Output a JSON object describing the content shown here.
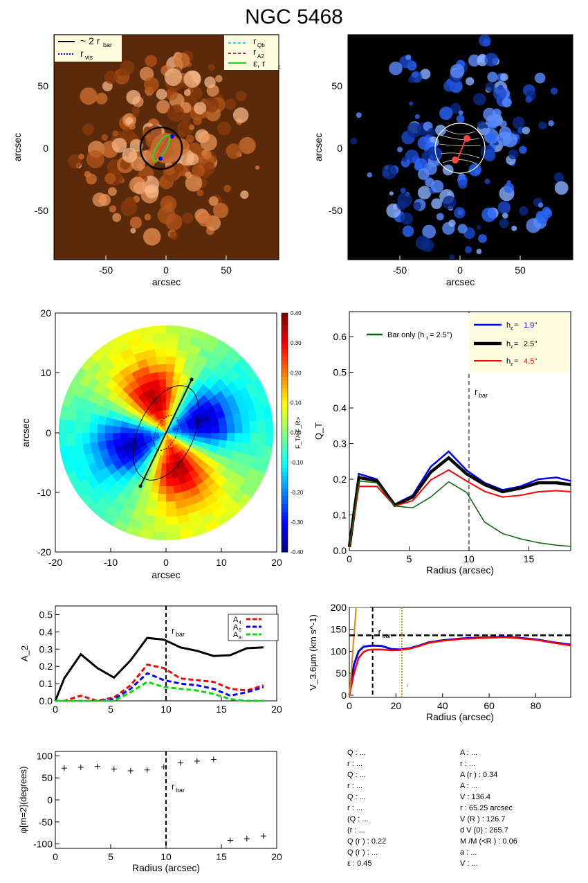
{
  "page": {
    "title": "NGC 5468"
  },
  "colors": {
    "image_bg": "#5a2a0a",
    "blue_bg": "#000000",
    "hz19": "#0000ff",
    "hz25": "#000000",
    "hz45": "#ff0000",
    "bar_only": "#006400",
    "a4": "#ff0000",
    "a6": "#0000ff",
    "a8": "#00dd00",
    "rmax_line": "#dd8800"
  },
  "panel_image": {
    "xlabel": "arcsec",
    "ylabel": "arcsec",
    "xticks": [
      "-50",
      "0",
      "50"
    ],
    "yticks": [
      "50",
      "0",
      "-50"
    ],
    "legend_left": [
      "~ 2 r",
      "bar",
      "r",
      "vis"
    ],
    "legend_right": [
      "r",
      "Qb",
      "r",
      "A2",
      "ε, r",
      "ε"
    ]
  },
  "panel_blue": {
    "xlabel": "arcsec",
    "ylabel": "arcsec",
    "xticks": [
      "-50",
      "0",
      "50"
    ],
    "yticks": [
      "50",
      "0",
      "-50"
    ]
  },
  "panel_ratio": {
    "xlabel": "arcsec",
    "ylabel": "arcsec",
    "xticks": [
      "-20",
      "-10",
      "0",
      "10",
      "20"
    ],
    "yticks": [
      "20",
      "10",
      "0",
      "-10",
      "-20"
    ],
    "colorbar_label": "F_T/<F_R>",
    "colorbar_ticks": [
      "0.40",
      "0.30",
      "0.20",
      "0.10",
      "0.00",
      "-0.10",
      "-0.20",
      "-0.30",
      "-0.40"
    ]
  },
  "chart_data": [
    {
      "type": "line",
      "xlabel": "Radius (arcsec)",
      "ylabel": "Q_T",
      "xlim": [
        0,
        18.5
      ],
      "ylim": [
        0,
        0.67
      ],
      "xticks": [
        "0",
        "5",
        "10",
        "15"
      ],
      "yticks": [
        "0.0",
        "0.1",
        "0.2",
        "0.3",
        "0.4",
        "0.5",
        "0.6"
      ],
      "vline": 10,
      "vline_label": "r",
      "vline_label_sub": "bar",
      "legend_bar_only": "Bar only (h",
      "legend_bar_only_rest": "=  2.5'')",
      "series": [
        {
          "name": "h  =  1.9''",
          "hz": "1.9''",
          "x": [
            0,
            0.8,
            2.3,
            3.8,
            5.3,
            6.8,
            8.3,
            9.8,
            11.3,
            12.8,
            14.3,
            15.8,
            17.3,
            18.5
          ],
          "y": [
            0.01,
            0.215,
            0.2,
            0.13,
            0.155,
            0.235,
            0.278,
            0.225,
            0.19,
            0.17,
            0.18,
            0.2,
            0.205,
            0.195
          ]
        },
        {
          "name": "h  =  2.5''",
          "hz": "2.5''",
          "x": [
            0,
            0.8,
            2.3,
            3.8,
            5.3,
            6.8,
            8.3,
            9.8,
            11.3,
            12.8,
            14.3,
            15.8,
            17.3,
            18.5
          ],
          "y": [
            0.01,
            0.205,
            0.195,
            0.127,
            0.15,
            0.22,
            0.26,
            0.215,
            0.185,
            0.165,
            0.175,
            0.19,
            0.19,
            0.185
          ]
        },
        {
          "name": "h  =  4.5''",
          "hz": "4.5''",
          "x": [
            0,
            0.8,
            2.3,
            3.8,
            5.3,
            6.8,
            8.3,
            9.8,
            11.3,
            12.8,
            14.3,
            15.8,
            17.3,
            18.5
          ],
          "y": [
            0.01,
            0.18,
            0.18,
            0.125,
            0.14,
            0.198,
            0.226,
            0.195,
            0.166,
            0.15,
            0.155,
            0.165,
            0.168,
            0.165
          ]
        },
        {
          "name": "Bar only (h  =  2.5'')",
          "x": [
            0,
            0.8,
            2.3,
            3.8,
            5.3,
            6.8,
            8.3,
            9.8,
            11.3,
            12.8,
            14.3,
            15.8,
            17.3,
            18.5
          ],
          "y": [
            0.01,
            0.195,
            0.19,
            0.125,
            0.12,
            0.15,
            0.193,
            0.163,
            0.08,
            0.048,
            0.033,
            0.022,
            0.015,
            0.012
          ]
        }
      ]
    },
    {
      "type": "line",
      "xlabel": "",
      "ylabel": "A_2",
      "xlim": [
        0,
        20
      ],
      "ylim": [
        0,
        0.55
      ],
      "xticks": [
        "0",
        "5",
        "10",
        "15",
        "20"
      ],
      "yticks": [
        "0.0",
        "0.1",
        "0.2",
        "0.3",
        "0.4",
        "0.5"
      ],
      "vline": 10,
      "vline_label": "r",
      "vline_label_sub": "bar",
      "legend": [
        "A",
        "A",
        "A"
      ],
      "legend_subs": [
        "4",
        "6",
        "8"
      ],
      "series": [
        {
          "name": "A2",
          "x": [
            0,
            0.8,
            2.3,
            3.8,
            5.3,
            6.8,
            8.3,
            9.8,
            11.3,
            12.8,
            14.3,
            15.8,
            17.3,
            18.8
          ],
          "y": [
            0.0,
            0.13,
            0.27,
            0.19,
            0.135,
            0.235,
            0.365,
            0.355,
            0.31,
            0.29,
            0.26,
            0.265,
            0.305,
            0.31
          ]
        },
        {
          "name": "A4",
          "x": [
            0,
            0.8,
            2.3,
            3.8,
            5.3,
            6.8,
            8.3,
            9.8,
            11.3,
            12.8,
            14.3,
            15.8,
            17.3,
            18.8
          ],
          "y": [
            0.0,
            0.0,
            0.03,
            0.0,
            0.02,
            0.09,
            0.21,
            0.19,
            0.13,
            0.12,
            0.11,
            0.07,
            0.06,
            0.09
          ]
        },
        {
          "name": "A6",
          "x": [
            0,
            0.8,
            2.3,
            3.8,
            5.3,
            6.8,
            8.3,
            9.8,
            11.3,
            12.8,
            14.3,
            15.8,
            17.3,
            18.8
          ],
          "y": [
            0.0,
            0.0,
            0.0,
            0.0,
            0.01,
            0.07,
            0.16,
            0.12,
            0.1,
            0.09,
            0.07,
            0.03,
            0.05,
            0.08
          ]
        },
        {
          "name": "A8",
          "x": [
            0,
            0.8,
            2.3,
            3.8,
            5.3,
            6.8,
            8.3,
            9.8,
            11.3,
            12.8,
            14.3,
            15.8,
            17.3,
            18.8
          ],
          "y": [
            0.0,
            0.0,
            0.0,
            0.0,
            0.0,
            0.05,
            0.11,
            0.08,
            0.07,
            0.06,
            0.04,
            0.01,
            0.0,
            0.0
          ]
        }
      ]
    },
    {
      "type": "line",
      "xlabel": "Radius (arcsec)",
      "ylabel": "V_3.6μm (km s^-1)",
      "xlim": [
        0,
        95
      ],
      "ylim": [
        -5,
        200
      ],
      "xticks": [
        "0",
        "20",
        "40",
        "60",
        "80"
      ],
      "yticks": [
        "0",
        "50",
        "100",
        "150",
        "200"
      ],
      "vline": 10,
      "vline_label": "r",
      "vline_label_sub": "bar",
      "vline2": 22.5,
      "vline2_label": "r",
      "hline": 136.4,
      "series": [
        {
          "name": "V total",
          "x": [
            0,
            2,
            4,
            6,
            8,
            10,
            14,
            18,
            22,
            26,
            30,
            34,
            40,
            48,
            56,
            62,
            66,
            72,
            80,
            88,
            95
          ],
          "y": [
            0,
            70,
            100,
            110,
            112,
            113,
            112,
            105,
            104,
            107,
            113,
            120,
            125,
            129,
            131,
            132,
            133,
            131,
            127,
            120,
            115
          ]
        },
        {
          "name": "V disk",
          "x": [
            0,
            2,
            4,
            6,
            8,
            10,
            14,
            18,
            22,
            26,
            30,
            34,
            40,
            48,
            56,
            62,
            66,
            72,
            80,
            88,
            95
          ],
          "y": [
            0,
            50,
            85,
            98,
            103,
            104,
            104,
            102,
            103,
            106,
            112,
            119,
            124,
            128,
            130,
            131,
            132,
            130,
            126,
            119,
            113
          ]
        },
        {
          "name": "V bulge",
          "x": [
            0,
            0.5,
            1,
            1.5,
            2,
            2.5,
            3
          ],
          "y": [
            0,
            30,
            65,
            100,
            135,
            170,
            205
          ]
        }
      ]
    },
    {
      "type": "scatter",
      "xlabel": "Radius (arcsec)",
      "ylabel": "φ[m=2](degrees)",
      "xlim": [
        0,
        20
      ],
      "ylim": [
        -110,
        110
      ],
      "xticks": [
        "0",
        "5",
        "10",
        "15",
        "20"
      ],
      "yticks": [
        "100",
        "50",
        "0",
        "-50",
        "-100"
      ],
      "vline": 10,
      "vline_label": "r",
      "vline_label_sub": "bar",
      "x": [
        0.8,
        2.3,
        3.8,
        5.3,
        6.8,
        8.3,
        9.8,
        11.3,
        12.8,
        14.3,
        15.8,
        17.3,
        18.8
      ],
      "y": [
        72,
        74,
        76,
        70,
        66,
        68,
        75,
        84,
        88,
        92,
        -92,
        -88,
        -82
      ]
    }
  ],
  "params_left": [
    "Q  : ...",
    "r   : ...",
    "Q        : ...",
    "r        : ...",
    "Q         : ...",
    "r         : ...",
    "(Q               : ...",
    "(r               : ...",
    "Q (r   ) :  0.22",
    "Q        (r   ) : ...",
    "ε :  0.45"
  ],
  "params_right": [
    "A     : ...",
    "r   : ...",
    "A (r   ) :  0.34",
    "A     : ...",
    "V       :  136.4",
    "r       :  65.25 arcsec",
    "V    (R   ) :  126.7",
    "d V    (0) :  265.7",
    "M /M (<R   ) :  0.06",
    "a : ...",
    "V  : ..."
  ]
}
